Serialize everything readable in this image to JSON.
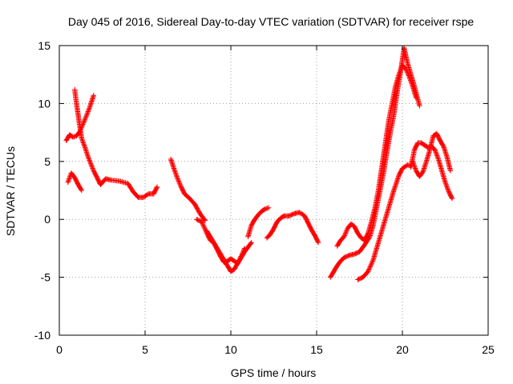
{
  "chart_data": {
    "type": "scatter",
    "title": "Day 045 of 2016, Sidereal Day-to-day VTEC variation (SDTVAR) for receiver rspe",
    "xlabel": "GPS time / hours",
    "ylabel": "SDTVAR / TECUs",
    "xlim": [
      0,
      25
    ],
    "ylim": [
      -10,
      15
    ],
    "xticks": [
      0,
      5,
      10,
      15,
      20,
      25
    ],
    "yticks": [
      -10,
      -5,
      0,
      5,
      10,
      15
    ],
    "xtick_labels": [
      "0",
      "5",
      "10",
      "15",
      "20",
      "25"
    ],
    "ytick_labels": [
      "-10",
      "-5",
      "0",
      "5",
      "10",
      "15"
    ],
    "grid": true,
    "marker": "+",
    "color": "#ff0000",
    "series": [
      {
        "x": [
          0.5,
          0.7,
          0.9,
          1.1,
          1.3
        ],
        "y": [
          3.2,
          4.0,
          3.6,
          3.0,
          2.5
        ]
      },
      {
        "x": [
          0.4,
          0.6,
          0.8,
          1.0,
          1.2,
          1.4,
          1.6,
          1.8,
          2.0
        ],
        "y": [
          6.8,
          7.3,
          7.1,
          7.2,
          7.6,
          8.3,
          9.0,
          9.8,
          10.7
        ]
      },
      {
        "x": [
          0.9,
          1.0,
          1.1,
          1.2,
          1.3,
          1.5,
          1.7,
          2.0,
          2.2,
          2.4,
          2.7,
          3.0,
          3.5,
          4.0,
          4.3,
          4.6,
          4.9,
          5.2,
          5.5,
          5.7
        ],
        "y": [
          11.2,
          10.0,
          9.0,
          8.0,
          7.0,
          6.2,
          5.3,
          4.2,
          3.6,
          3.0,
          3.5,
          3.4,
          3.3,
          3.1,
          2.4,
          1.9,
          1.9,
          2.2,
          2.2,
          2.8
        ]
      },
      {
        "x": [
          6.5,
          6.7,
          6.9,
          7.1,
          7.3,
          7.6,
          7.9,
          8.2,
          8.5
        ],
        "y": [
          5.2,
          4.3,
          3.5,
          2.8,
          2.2,
          1.8,
          1.3,
          0.5,
          -0.1
        ]
      },
      {
        "x": [
          8.0,
          8.3,
          8.6,
          8.8,
          9.0,
          9.2,
          9.4,
          9.6,
          9.8,
          10.0,
          10.2,
          10.4,
          10.6,
          10.8,
          11.0,
          11.2
        ],
        "y": [
          0.0,
          -0.2,
          -1.2,
          -1.8,
          -2.0,
          -2.5,
          -3.0,
          -3.5,
          -4.0,
          -4.5,
          -4.3,
          -3.8,
          -3.3,
          -2.8,
          -2.4,
          -2.0
        ]
      },
      {
        "x": [
          8.6,
          8.8,
          9.0,
          9.2,
          9.4,
          9.6,
          9.8,
          10.0,
          10.2,
          10.4,
          10.6,
          10.8
        ],
        "y": [
          -1.0,
          -1.5,
          -2.0,
          -2.6,
          -3.2,
          -3.7,
          -3.6,
          -3.4,
          -3.6,
          -3.8,
          -3.2,
          -2.5
        ]
      },
      {
        "x": [
          11.0,
          11.2,
          11.4,
          11.6,
          11.8,
          12.0,
          12.2
        ],
        "y": [
          -1.5,
          -0.5,
          0.0,
          0.4,
          0.7,
          0.9,
          1.0
        ]
      },
      {
        "x": [
          12.1,
          12.3,
          12.5,
          12.7,
          12.9,
          13.1,
          13.4,
          13.7,
          14.0,
          14.3,
          14.5,
          14.7,
          14.9,
          15.1
        ],
        "y": [
          -1.6,
          -1.3,
          -0.8,
          -0.2,
          0.1,
          0.3,
          0.3,
          0.5,
          0.6,
          0.3,
          -0.3,
          -0.9,
          -1.4,
          -2.0
        ]
      },
      {
        "x": [
          15.8,
          16.0,
          16.2,
          16.4,
          16.6,
          16.9,
          17.2,
          17.5,
          17.8,
          18.1,
          18.3,
          18.5,
          18.7,
          18.9,
          19.1,
          19.3,
          19.5,
          19.7,
          19.9,
          20.1,
          20.3,
          20.5,
          20.7,
          21.0
        ],
        "y": [
          -5.0,
          -4.5,
          -4.0,
          -3.6,
          -3.3,
          -3.1,
          -3.0,
          -2.8,
          -2.2,
          -1.5,
          -0.5,
          1.0,
          2.5,
          4.0,
          5.8,
          7.5,
          9.0,
          11.0,
          12.8,
          14.8,
          13.5,
          12.5,
          11.5,
          9.8
        ]
      },
      {
        "x": [
          16.2,
          16.4,
          16.6,
          16.8,
          17.0,
          17.2,
          17.4,
          17.6,
          17.8,
          18.0,
          18.2,
          18.4,
          18.6,
          18.8,
          19.0,
          19.2,
          19.4,
          19.6,
          19.8,
          20.0,
          20.2,
          20.4,
          20.6,
          20.8
        ],
        "y": [
          -2.3,
          -1.8,
          -1.5,
          -0.8,
          -0.4,
          -0.6,
          -1.2,
          -1.6,
          -1.8,
          -1.2,
          -0.2,
          1.0,
          2.5,
          4.5,
          6.5,
          8.5,
          10.0,
          11.5,
          12.5,
          13.3,
          13.0,
          12.3,
          11.5,
          10.5
        ]
      },
      {
        "x": [
          17.4,
          17.7,
          18.0,
          18.3,
          18.6,
          18.9,
          19.2,
          19.5,
          19.8,
          20.0,
          20.3,
          20.5
        ],
        "y": [
          -5.2,
          -5.0,
          -4.5,
          -3.5,
          -2.0,
          -0.5,
          1.0,
          2.5,
          3.8,
          4.4,
          4.7,
          4.6
        ]
      },
      {
        "x": [
          20.5,
          20.7,
          20.9,
          21.1,
          21.3,
          21.5,
          21.7,
          21.9,
          22.1,
          22.3,
          22.5,
          22.7,
          22.9
        ],
        "y": [
          4.5,
          6.0,
          6.6,
          6.6,
          6.4,
          6.2,
          6.3,
          6.0,
          5.2,
          4.2,
          3.2,
          2.4,
          1.8
        ]
      },
      {
        "x": [
          20.6,
          20.8,
          21.0,
          21.2,
          21.4,
          21.6,
          21.8,
          22.0,
          22.2,
          22.4,
          22.6,
          22.8
        ],
        "y": [
          5.0,
          4.2,
          3.7,
          4.1,
          5.0,
          6.0,
          7.2,
          7.4,
          6.8,
          6.3,
          5.4,
          4.2
        ]
      }
    ]
  }
}
